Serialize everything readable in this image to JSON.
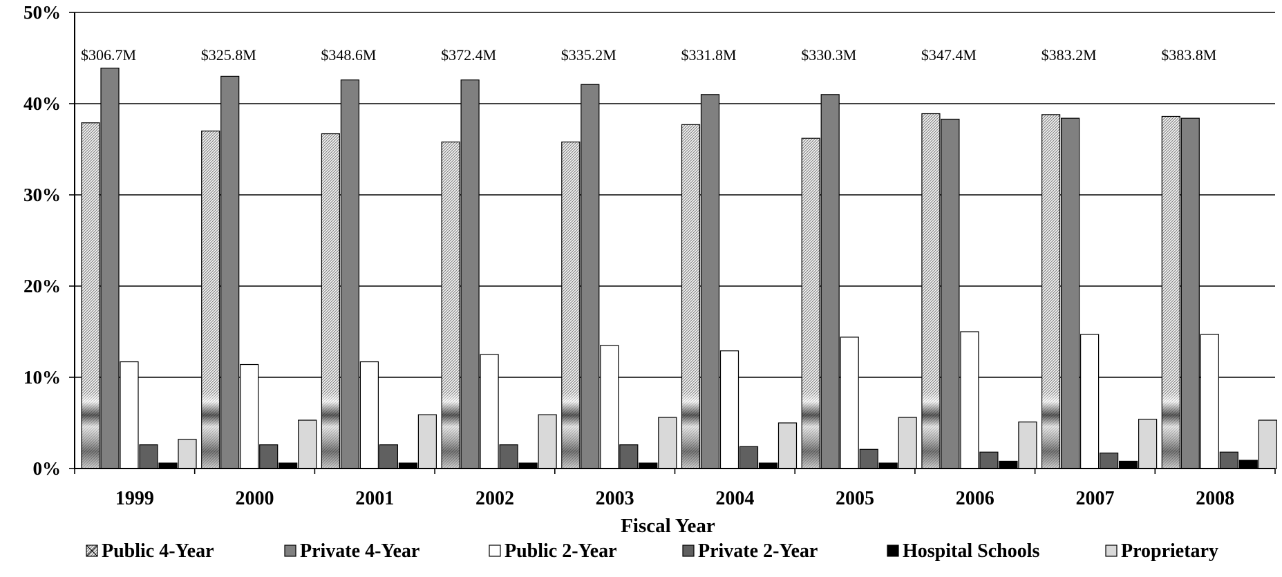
{
  "chart_data": {
    "type": "bar",
    "title": "",
    "xlabel": "Fiscal Year",
    "ylabel": "",
    "ylim": [
      0,
      50
    ],
    "y_ticks": [
      "0%",
      "10%",
      "20%",
      "30%",
      "40%",
      "50%"
    ],
    "y_tick_values": [
      0,
      10,
      20,
      30,
      40,
      50
    ],
    "grid": true,
    "legend_position": "bottom",
    "categories": [
      "1999",
      "2000",
      "2001",
      "2002",
      "2003",
      "2004",
      "2005",
      "2006",
      "2007",
      "2008"
    ],
    "totals": [
      "$306.7M",
      "$325.8M",
      "$348.6M",
      "$372.4M",
      "$335.2M",
      "$331.8M",
      "$330.3M",
      "$347.4M",
      "$383.2M",
      "$383.8M"
    ],
    "series": [
      {
        "name": "Public 4-Year",
        "values": [
          37.9,
          37.0,
          36.7,
          35.8,
          35.8,
          37.7,
          36.2,
          38.9,
          38.8,
          38.6
        ],
        "color": "#d9d9d9",
        "pattern": "hatch"
      },
      {
        "name": "Private 4-Year",
        "values": [
          43.9,
          43.0,
          42.6,
          42.6,
          42.1,
          41.0,
          41.0,
          38.3,
          38.4,
          38.4
        ],
        "color": "#808080",
        "pattern": "solid"
      },
      {
        "name": "Public 2-Year",
        "values": [
          11.7,
          11.4,
          11.7,
          12.5,
          13.5,
          12.9,
          14.4,
          15.0,
          14.7,
          14.7
        ],
        "color": "#ffffff",
        "pattern": "solid"
      },
      {
        "name": "Private 2-Year",
        "values": [
          2.6,
          2.6,
          2.6,
          2.6,
          2.6,
          2.4,
          2.1,
          1.8,
          1.7,
          1.8
        ],
        "color": "#606060",
        "pattern": "solid"
      },
      {
        "name": "Hospital Schools",
        "values": [
          0.6,
          0.6,
          0.6,
          0.6,
          0.6,
          0.6,
          0.6,
          0.8,
          0.8,
          0.9
        ],
        "color": "#000000",
        "pattern": "solid"
      },
      {
        "name": "Proprietary",
        "values": [
          3.2,
          5.3,
          5.9,
          5.9,
          5.6,
          5.0,
          5.6,
          5.1,
          5.4,
          5.3
        ],
        "color": "#d9d9d9",
        "pattern": "solid"
      }
    ]
  }
}
